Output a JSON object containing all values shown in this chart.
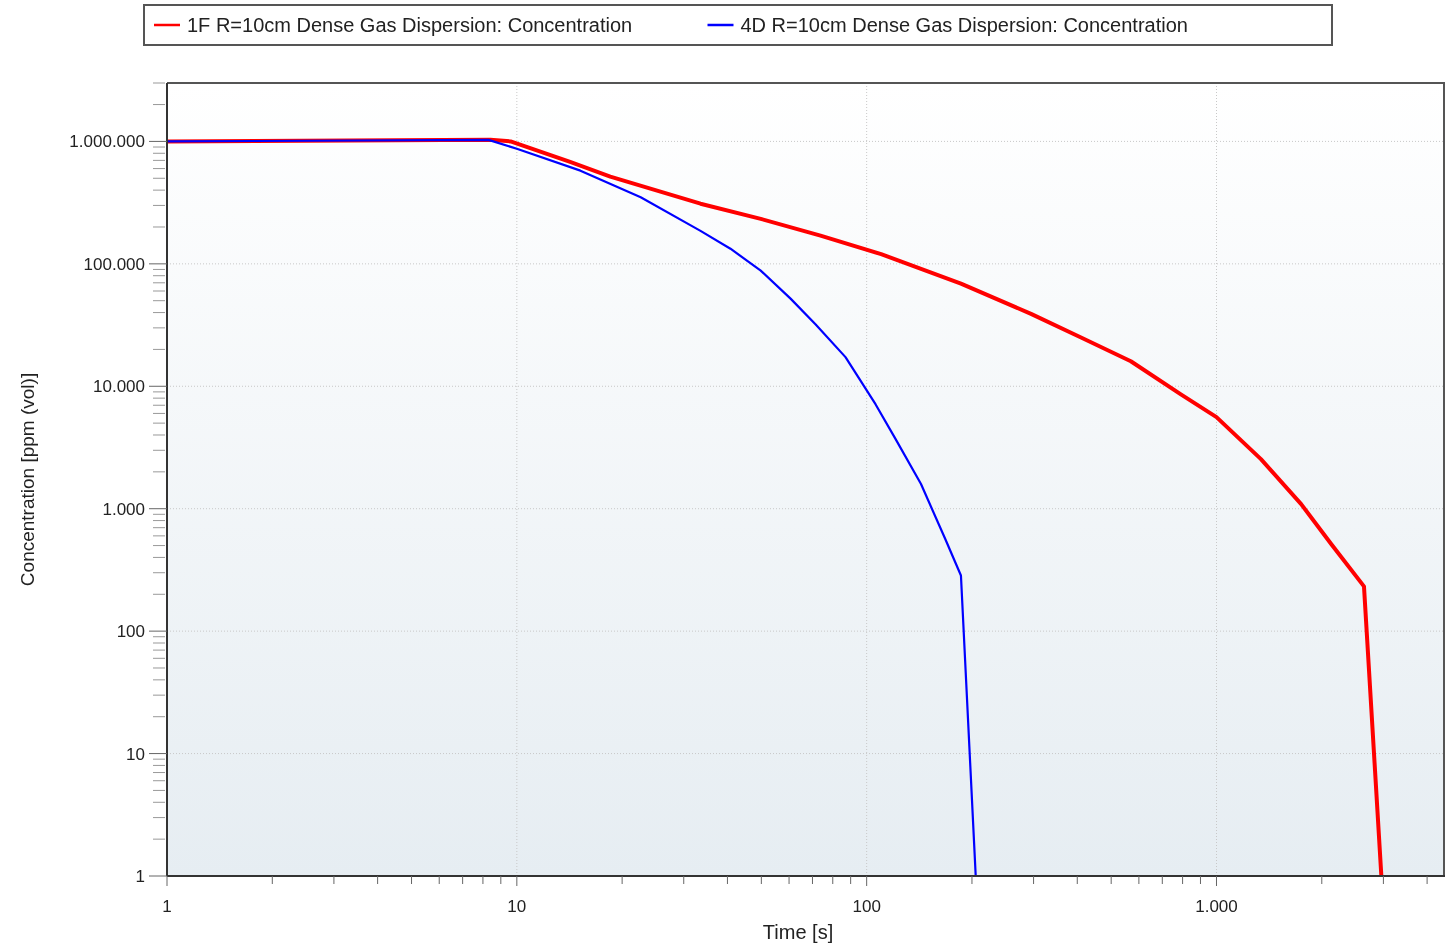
{
  "chart_data": {
    "type": "line",
    "xlabel": "Time [s]",
    "ylabel": "Concentration [ppm (vol)]",
    "log": "xy",
    "grid": true,
    "legend": "top",
    "line_style": "solid",
    "xlim": [
      1,
      4500
    ],
    "xticks": [
      {
        "value": 1,
        "label": "1"
      },
      {
        "value": 2,
        "label": null
      },
      {
        "value": 3,
        "label": null
      },
      {
        "value": 4,
        "label": null
      },
      {
        "value": 5,
        "label": null
      },
      {
        "value": 6,
        "label": null
      },
      {
        "value": 7,
        "label": null
      },
      {
        "value": 8,
        "label": null
      },
      {
        "value": 9,
        "label": null
      },
      {
        "value": 10,
        "label": "10"
      },
      {
        "value": 20,
        "label": null
      },
      {
        "value": 30,
        "label": null
      },
      {
        "value": 40,
        "label": null
      },
      {
        "value": 50,
        "label": null
      },
      {
        "value": 60,
        "label": null
      },
      {
        "value": 70,
        "label": null
      },
      {
        "value": 80,
        "label": null
      },
      {
        "value": 90,
        "label": null
      },
      {
        "value": 100,
        "label": "100"
      },
      {
        "value": 200,
        "label": null
      },
      {
        "value": 300,
        "label": null
      },
      {
        "value": 400,
        "label": null
      },
      {
        "value": 500,
        "label": null
      },
      {
        "value": 600,
        "label": null
      },
      {
        "value": 700,
        "label": null
      },
      {
        "value": 800,
        "label": null
      },
      {
        "value": 900,
        "label": null
      },
      {
        "value": 1000,
        "label": "1.000"
      },
      {
        "value": 2000,
        "label": null
      },
      {
        "value": 3000,
        "label": null
      },
      {
        "value": 4000,
        "label": null
      }
    ],
    "ylim": [
      1,
      3000000
    ],
    "yticks": [
      {
        "value": 1,
        "label": "1"
      },
      {
        "value": 10,
        "label": "10"
      },
      {
        "value": 100,
        "label": "100"
      },
      {
        "value": 1000,
        "label": "1.000"
      },
      {
        "value": 10000,
        "label": "10.000"
      },
      {
        "value": 100000,
        "label": "100.000"
      },
      {
        "value": 1000000,
        "label": "1.000.000"
      }
    ],
    "series": [
      {
        "name": "1F R=10cm Dense Gas Dispersion: Concentration",
        "color": "#ff0000",
        "x": [
          1,
          8.4,
          9.6,
          14.2,
          18.5,
          33.5,
          49.8,
          73.8,
          110,
          186,
          295,
          410,
          569,
          791,
          1000,
          1340,
          1746,
          2130,
          2640,
          2960
        ],
        "values": [
          1000000,
          1030000,
          1000000,
          680000,
          515000,
          310000,
          233000,
          170000,
          120000,
          69000,
          39000,
          25000,
          16000,
          8600,
          5600,
          2540,
          1090,
          512,
          232,
          1
        ]
      },
      {
        "name": "4D R=10cm Dense Gas Dispersion: Concentration",
        "color": "#0000ff",
        "x": [
          1,
          8.3,
          10,
          15.2,
          22.6,
          33.5,
          40.8,
          49.8,
          60.6,
          71.5,
          87,
          106,
          121,
          143,
          168,
          186,
          205
        ],
        "values": [
          1000000,
          1030000,
          870000,
          577000,
          350000,
          186000,
          133000,
          88000,
          52000,
          32000,
          17300,
          7140,
          3700,
          1590,
          560,
          285,
          1
        ]
      }
    ]
  }
}
